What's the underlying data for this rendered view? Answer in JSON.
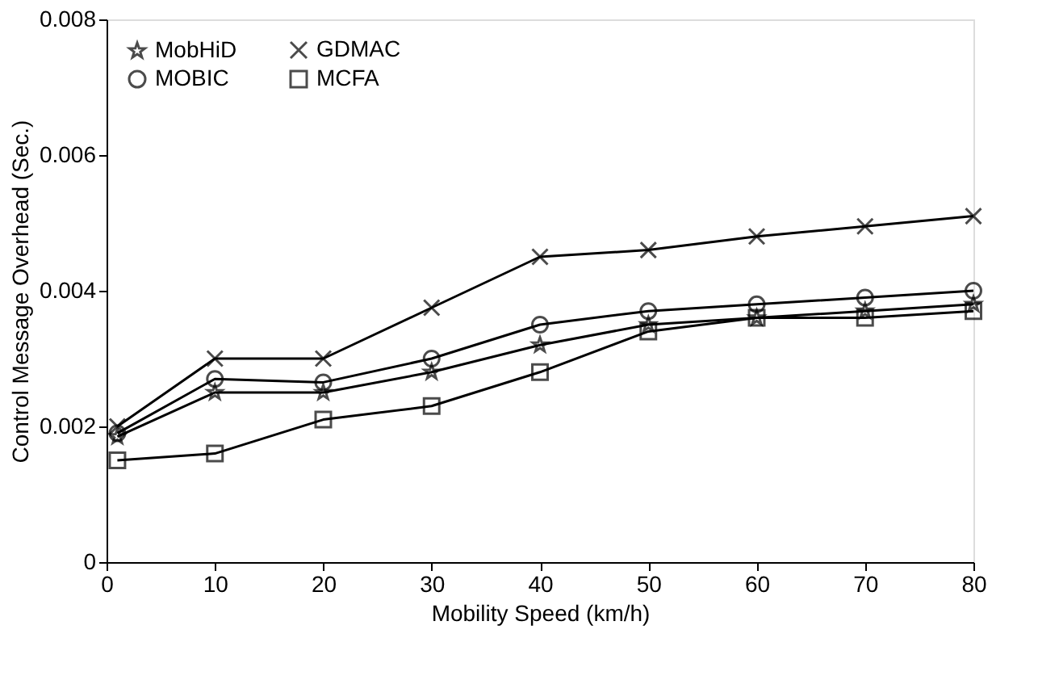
{
  "chart_data": {
    "type": "line",
    "xlabel": "Mobility Speed (km/h)",
    "ylabel": "Control Message Overhead (Sec.)",
    "x": [
      1,
      10,
      20,
      30,
      40,
      50,
      60,
      70,
      80
    ],
    "series": [
      {
        "name": "MobHiD",
        "color": "#000000",
        "marker": "star",
        "values": [
          0.00185,
          0.0025,
          0.0025,
          0.0028,
          0.0032,
          0.0035,
          0.0036,
          0.0037,
          0.0038
        ]
      },
      {
        "name": "GDMAC",
        "color": "#000000",
        "marker": "cross",
        "values": [
          0.002,
          0.003,
          0.003,
          0.00375,
          0.0045,
          0.0046,
          0.0048,
          0.00495,
          0.0051
        ]
      },
      {
        "name": "MOBIC",
        "color": "#000000",
        "marker": "circle",
        "values": [
          0.0019,
          0.0027,
          0.00265,
          0.003,
          0.0035,
          0.0037,
          0.0038,
          0.0039,
          0.004
        ]
      },
      {
        "name": "MCFA",
        "color": "#000000",
        "marker": "square",
        "values": [
          0.0015,
          0.0016,
          0.0021,
          0.0023,
          0.0028,
          0.0034,
          0.0036,
          0.0036,
          0.0037
        ]
      }
    ],
    "xlim": [
      0,
      80
    ],
    "xticks": [
      0,
      10,
      20,
      30,
      40,
      50,
      60,
      70,
      80
    ],
    "ylim": [
      0,
      0.008
    ],
    "yticks": [
      0,
      0.002,
      0.004,
      0.006,
      0.008
    ],
    "grid": false,
    "legend": "top left",
    "line_style": "solid"
  }
}
